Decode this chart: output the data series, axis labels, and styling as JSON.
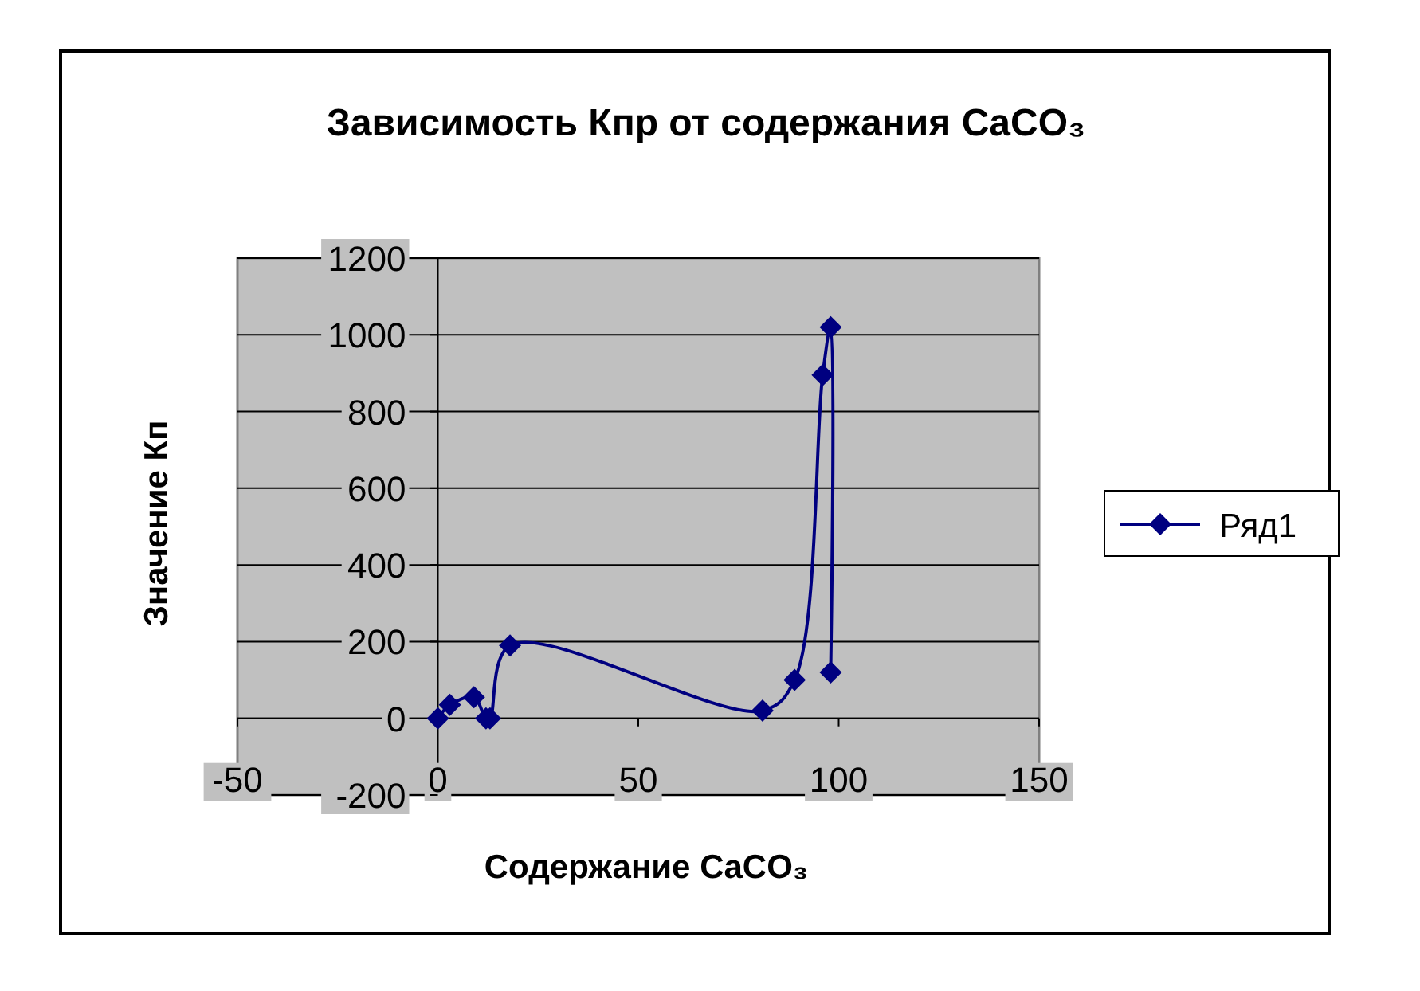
{
  "chart_data": {
    "type": "line",
    "title": "Зависимость Кпр от содержания CaCO₃",
    "xlabel": "Содержание CaCO₃",
    "ylabel": "Значение Кп",
    "x": [
      0,
      3,
      9,
      12,
      13,
      18,
      81,
      89,
      96,
      98,
      98
    ],
    "series": [
      {
        "name": "Ряд1",
        "color": "#000080",
        "values": [
          0,
          35,
          55,
          0,
          0,
          190,
          20,
          100,
          895,
          1020,
          120
        ]
      }
    ],
    "xlim": [
      -50,
      150
    ],
    "xticks": [
      -50,
      0,
      50,
      100,
      150
    ],
    "ylim": [
      -200,
      1200
    ],
    "yticks": [
      -200,
      0,
      200,
      400,
      600,
      800,
      1000,
      1200
    ],
    "grid": "y",
    "legend": "right",
    "marker": "diamond",
    "line_style": "solid"
  }
}
